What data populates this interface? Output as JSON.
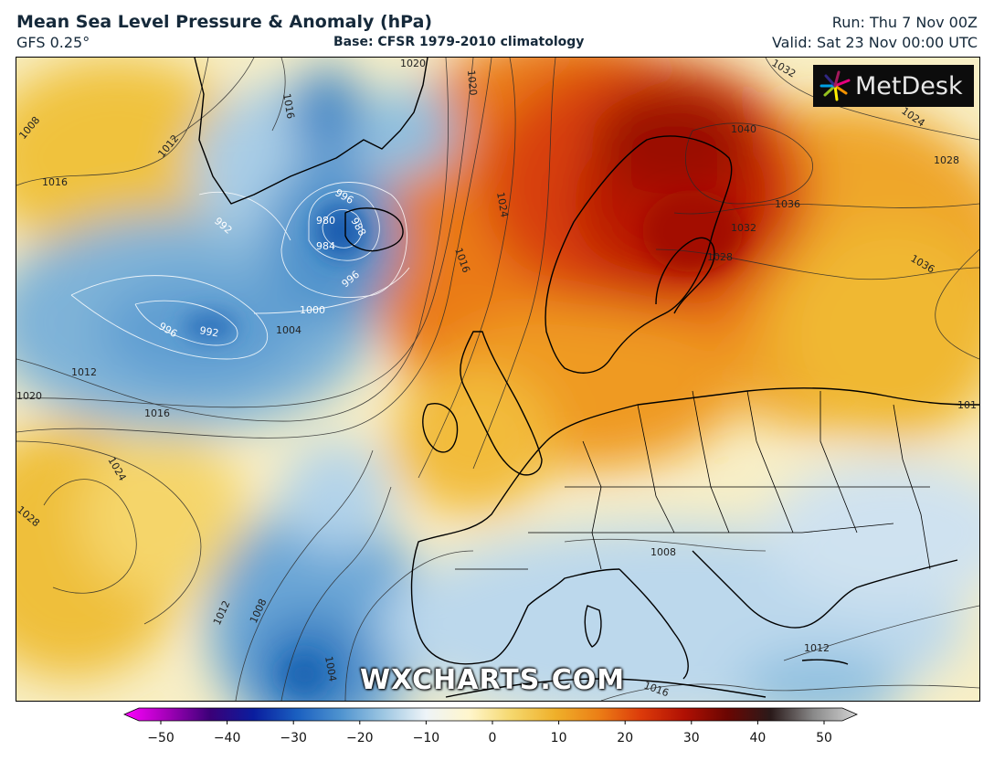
{
  "header": {
    "title": "Mean Sea Level Pressure & Anomaly (hPa)",
    "model": "GFS 0.25°",
    "base": "Base: CFSR 1979-2010 climatology",
    "run": "Run: Thu 7 Nov 00Z",
    "valid": "Valid: Sat 23 Nov 00:00 UTC"
  },
  "logo": {
    "icon": "metdesk-burst-icon",
    "text": "MetDesk"
  },
  "watermark": "WXCHARTS.COM",
  "isobars": {
    "l1016_a": "1016",
    "l1016_b": "1016",
    "l1016_c": "1016",
    "l1016_d": "1016",
    "l1016_e": "1016",
    "l1012_a": "1012",
    "l1012_b": "1012",
    "l1012_c": "1012",
    "l1012_d": "1012",
    "l1008_a": "1008",
    "l1008_b": "1008",
    "l1008_c": "1008",
    "l1004_a": "1004",
    "l1004_b": "1004",
    "l1000": "1000",
    "l996_a": "996",
    "l996_b": "996",
    "l996_c": "996",
    "l992_a": "992",
    "l992_b": "992",
    "l988": "988",
    "l984": "984",
    "l980": "980",
    "l1020_a": "1020",
    "l1020_b": "1020",
    "l1020_c": "1020",
    "l1024_a": "1024",
    "l1024_b": "1024",
    "l1024_c": "1024",
    "l1028_a": "1028",
    "l1028_b": "1028",
    "l1028_c": "1028",
    "l1032_a": "1032",
    "l1032_b": "1032",
    "l1036_a": "1036",
    "l1036_b": "1036",
    "l1040": "1040",
    "l101x": "101"
  },
  "colorbar": {
    "ticks": [
      "−50",
      "−40",
      "−30",
      "−20",
      "−10",
      "0",
      "10",
      "20",
      "30",
      "40",
      "50"
    ],
    "range": [
      -50,
      50
    ],
    "colors": [
      "#ff00ff",
      "#a300b8",
      "#3a0078",
      "#0a1d9e",
      "#1a5fc0",
      "#4d92cf",
      "#9cc6e2",
      "#eef4f8",
      "#fff6cc",
      "#f5d76c",
      "#efb02a",
      "#ec7f16",
      "#dc3a0a",
      "#b01003",
      "#6a0602",
      "#2a1a1a",
      "#8a8a8a",
      "#d4d4d4"
    ]
  }
}
